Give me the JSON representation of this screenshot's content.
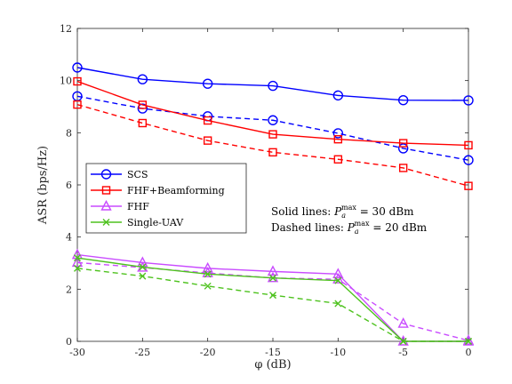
{
  "chart_data": {
    "type": "line",
    "xlabel": "φ (dB)",
    "ylabel": "ASR (bps/Hz)",
    "xlim": [
      -30,
      0
    ],
    "ylim": [
      0,
      12
    ],
    "xticks": [
      -30,
      -25,
      -20,
      -15,
      -10,
      -5,
      0
    ],
    "yticks": [
      0,
      2,
      4,
      6,
      8,
      10,
      12
    ],
    "grid": false,
    "legend_position": "middle-left",
    "x": [
      -30,
      -25,
      -20,
      -15,
      -10,
      -5,
      0
    ],
    "series": [
      {
        "name": "SCS",
        "color": "#0000ff",
        "marker": "circle",
        "style": "solid",
        "values": [
          10.5,
          10.05,
          9.88,
          9.8,
          9.43,
          9.25,
          9.24
        ]
      },
      {
        "name": "SCS",
        "color": "#0000ff",
        "marker": "circle",
        "style": "dashed",
        "legend": false,
        "values": [
          9.4,
          8.93,
          8.63,
          8.48,
          7.98,
          7.4,
          6.95
        ]
      },
      {
        "name": "FHF+Beamforming",
        "color": "#ff0000",
        "marker": "square",
        "style": "solid",
        "values": [
          9.97,
          9.07,
          8.47,
          7.94,
          7.75,
          7.6,
          7.52
        ]
      },
      {
        "name": "FHF+Beamforming",
        "color": "#ff0000",
        "marker": "square",
        "style": "dashed",
        "legend": false,
        "values": [
          9.08,
          8.37,
          7.7,
          7.25,
          6.98,
          6.65,
          5.96
        ]
      },
      {
        "name": "FHF",
        "color": "#c94cff",
        "marker": "triangle",
        "style": "solid",
        "values": [
          3.32,
          3.02,
          2.8,
          2.68,
          2.58,
          0,
          0
        ]
      },
      {
        "name": "FHF",
        "color": "#c94cff",
        "marker": "triangle",
        "style": "dashed",
        "legend": false,
        "values": [
          3.02,
          2.83,
          2.62,
          2.43,
          2.38,
          0.68,
          0.03
        ]
      },
      {
        "name": "Single-UAV",
        "color": "#4ec21e",
        "marker": "x",
        "style": "solid",
        "values": [
          3.2,
          2.85,
          2.58,
          2.43,
          2.33,
          0,
          0
        ]
      },
      {
        "name": "Single-UAV",
        "color": "#4ec21e",
        "marker": "x",
        "style": "dashed",
        "legend": false,
        "values": [
          2.8,
          2.5,
          2.12,
          1.77,
          1.45,
          0,
          0
        ]
      }
    ],
    "legend": [
      "SCS",
      "FHF+Beamforming",
      "FHF",
      "Single-UAV"
    ],
    "annotations": [
      {
        "prefix": "Solid lines: ",
        "var": "P",
        "sub": "a",
        "sup": "max",
        "suffix": " = 30 dBm"
      },
      {
        "prefix": "Dashed lines: ",
        "var": "P",
        "sub": "a",
        "sup": "max",
        "suffix": " = 20 dBm"
      }
    ]
  }
}
